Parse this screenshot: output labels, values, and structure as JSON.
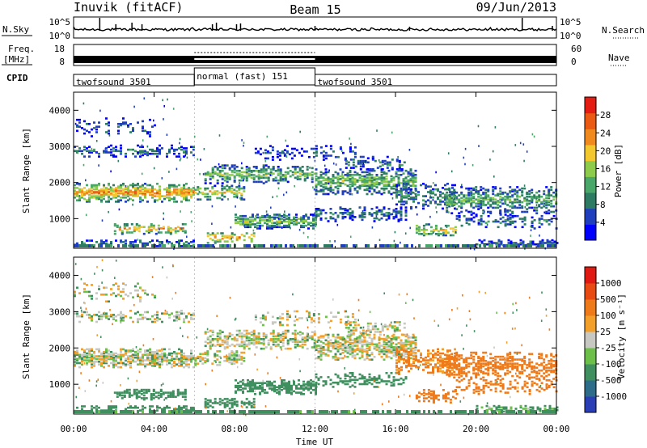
{
  "header": {
    "station": "Inuvik (fitACF)",
    "beam": "Beam 15",
    "date": "09/Jun/2013"
  },
  "noise_panel": {
    "left_label": "N.Sky",
    "right_label": "N.Search",
    "tick_top": "10^5",
    "tick_bottom": "10^0"
  },
  "freq_panel": {
    "left_label_1": "Freq.",
    "left_label_2": "[MHz]",
    "left_tick_top": "18",
    "left_tick_bottom": "8",
    "right_label": "Nave",
    "right_tick_top": "60",
    "right_tick_bottom": "0"
  },
  "cpid": {
    "label": "CPID",
    "segments": [
      {
        "name": "twofsound 3501",
        "start_hour": 0,
        "end_hour": 6
      },
      {
        "name": "normal (fast) 151",
        "start_hour": 6,
        "end_hour": 12
      },
      {
        "name": "twofsound 3501",
        "start_hour": 12,
        "end_hour": 24
      }
    ]
  },
  "chart_data": [
    {
      "type": "heatmap",
      "panel": "power",
      "ylabel": "Slant Range [km]",
      "ylim": [
        180,
        4500
      ],
      "yticks": [
        "1000",
        "2000",
        "3000",
        "4000"
      ],
      "xlim": [
        0,
        24
      ],
      "colorbar_label": "Power [dB]",
      "colorbar_ticks": [
        "28",
        "24",
        "20",
        "16",
        "12",
        "8",
        "4"
      ],
      "colorbar_colors": [
        "#0000ff",
        "#1f3fbf",
        "#2d7b63",
        "#4aa76a",
        "#8ccc4a",
        "#f2c82e",
        "#f08a1f",
        "#ea5a12",
        "#e51c12"
      ]
    },
    {
      "type": "heatmap",
      "panel": "velocity",
      "ylabel": "Slant Range [km]",
      "ylim": [
        180,
        4500
      ],
      "yticks": [
        "1000",
        "2000",
        "3000",
        "4000"
      ],
      "xlabel": "Time UT",
      "xlim": [
        0,
        24
      ],
      "xticks": [
        "00:00",
        "04:00",
        "08:00",
        "12:00",
        "16:00",
        "20:00",
        "00:00"
      ],
      "colorbar_label": "Velocity [m s⁻¹]",
      "colorbar_ticks": [
        "1000",
        "500",
        "100",
        "25",
        "-25",
        "-100",
        "-500",
        "-1000"
      ],
      "colorbar_colors": [
        "#2a3fb5",
        "#2d6d8a",
        "#3f8f5f",
        "#6cc04a",
        "#c8c8c2",
        "#f2a02a",
        "#ee7a1a",
        "#e84a12",
        "#e01a12"
      ]
    }
  ]
}
